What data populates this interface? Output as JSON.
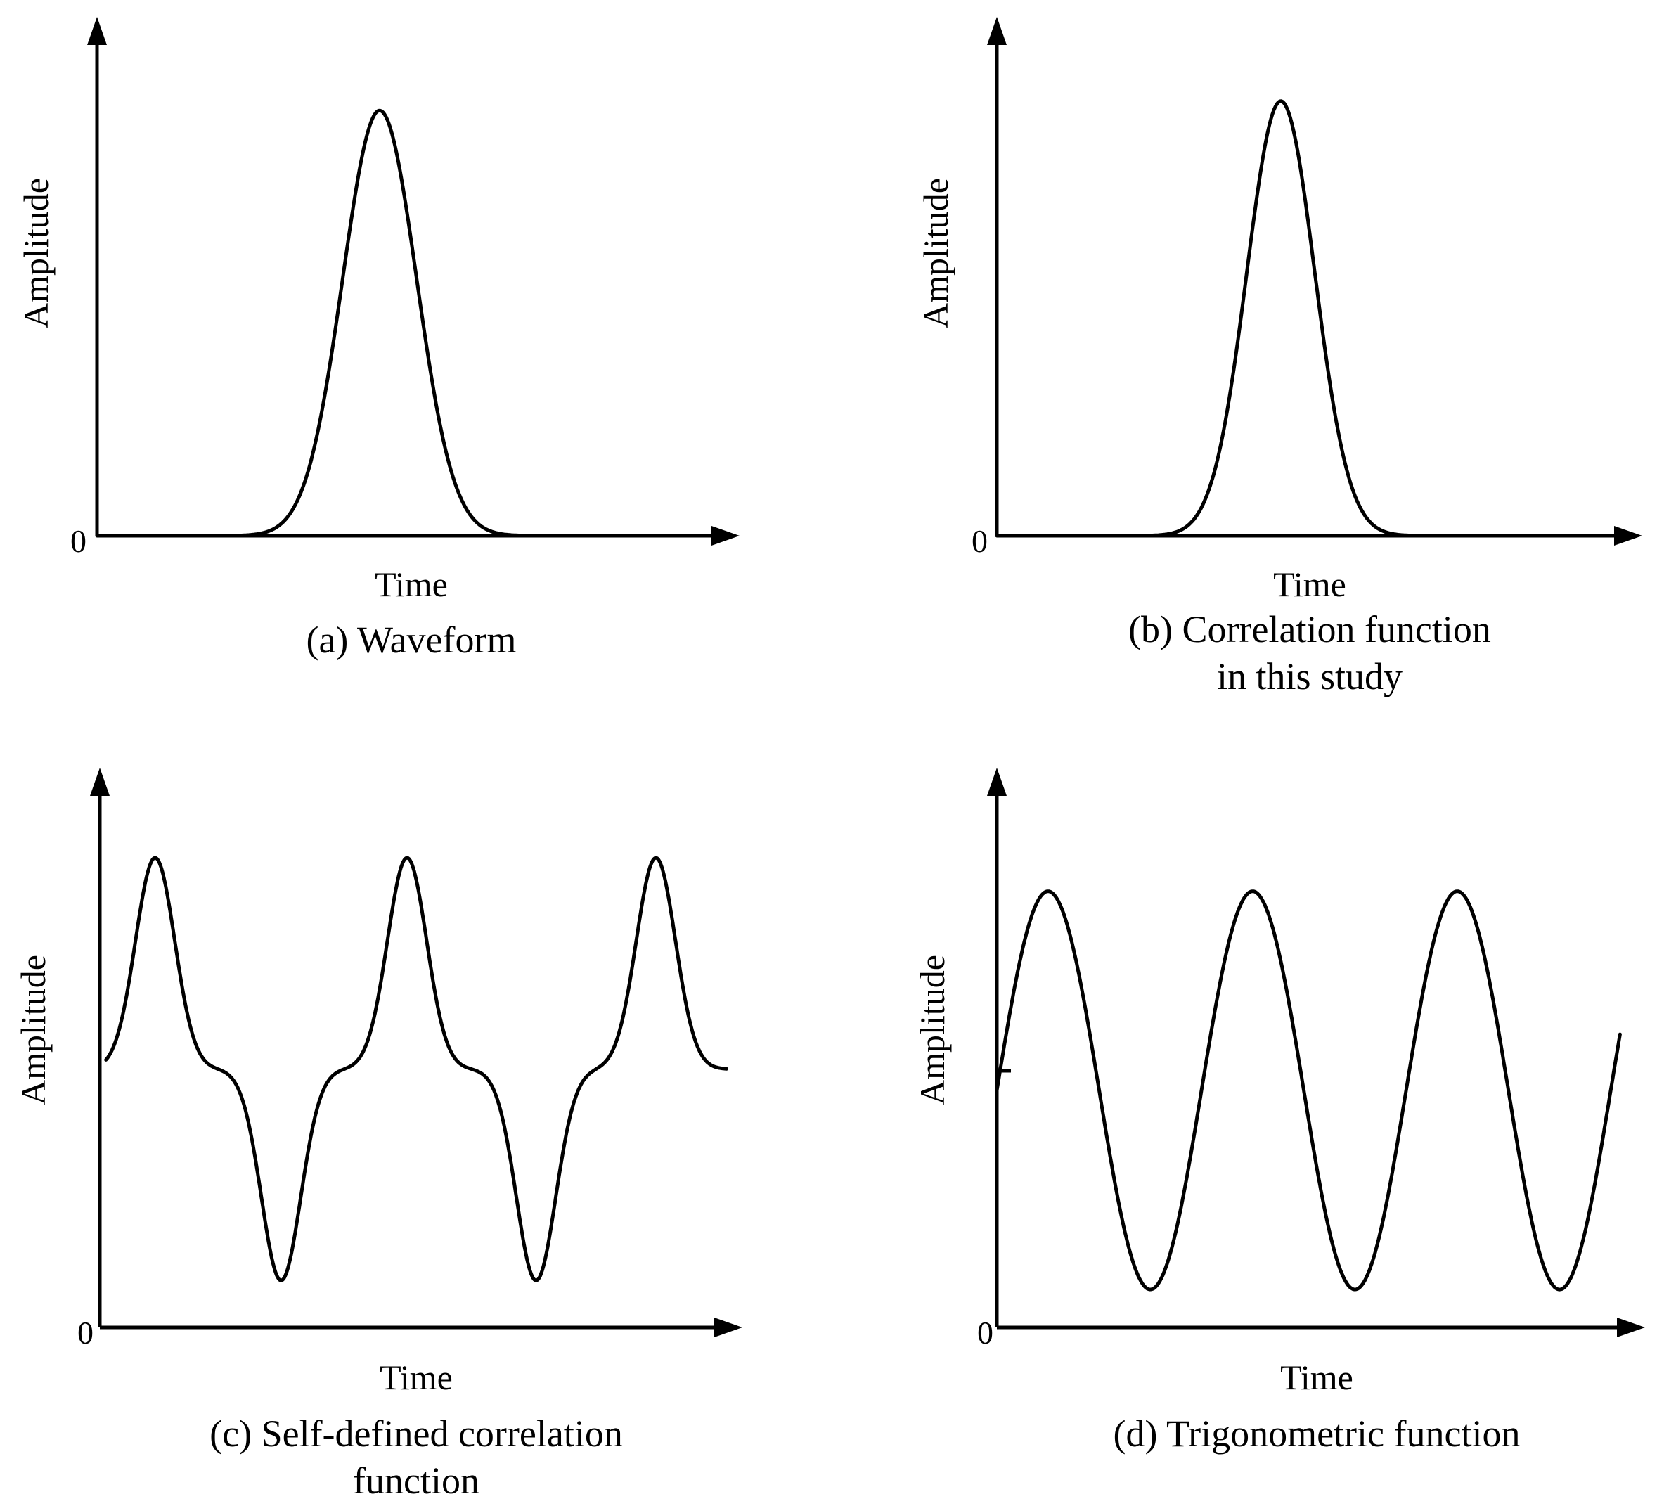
{
  "chart_data": [
    {
      "id": "a",
      "type": "line",
      "shape": "gaussian-pulse",
      "xlabel": "Time",
      "ylabel": "Amplitude",
      "y_origin_label": "0",
      "caption": [
        "(a) Waveform"
      ],
      "series": [
        {
          "peak_position": 0.46,
          "peak_amplitude": 0.9,
          "width": 0.06
        }
      ]
    },
    {
      "id": "b",
      "type": "line",
      "shape": "gaussian-pulse",
      "xlabel": "Time",
      "ylabel": "Amplitude",
      "y_origin_label": "0",
      "caption": [
        "(b) Correlation function",
        "in this study"
      ],
      "series": [
        {
          "peak_position": 0.46,
          "peak_amplitude": 0.92,
          "width": 0.055
        }
      ]
    },
    {
      "id": "c",
      "type": "line",
      "shape": "alternating-pulse-train",
      "xlabel": "Time",
      "ylabel": "Amplitude",
      "y_origin_label": "0",
      "caption": [
        "(c) Self-defined correlation",
        "function"
      ],
      "series": [
        {
          "baseline": 0.55,
          "peak_amplitude": 1.0,
          "trough_amplitude": 0.1,
          "pulse_count_up": 3,
          "pulse_count_down": 2
        }
      ]
    },
    {
      "id": "d",
      "type": "line",
      "shape": "sinusoid",
      "xlabel": "Time",
      "ylabel": "Amplitude",
      "y_origin_label": "0",
      "caption": [
        "(d) Trigonometric function"
      ],
      "series": [
        {
          "offset": 0.5,
          "amplitude": 0.42,
          "cycles": 3.0
        }
      ]
    }
  ]
}
